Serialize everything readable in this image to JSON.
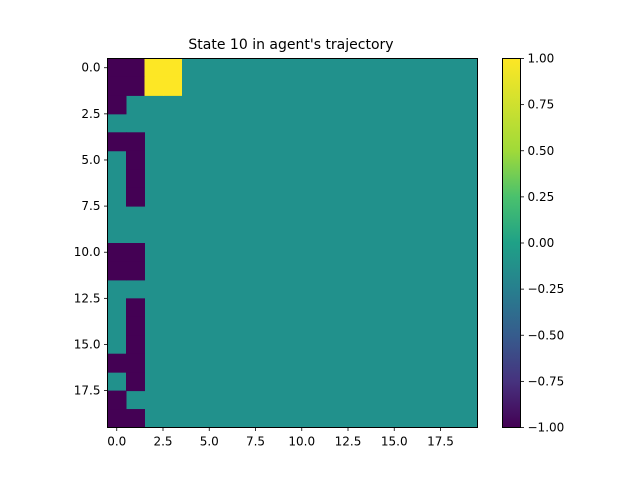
{
  "chart_data": {
    "type": "heatmap",
    "title": "State 10 in agent's trajectory",
    "xlabel": "",
    "ylabel": "",
    "rows": 20,
    "cols": 20,
    "colormap": "viridis",
    "vmin": -1.0,
    "vmax": 1.0,
    "colors": {
      "neg": "#440154",
      "zero": "#21918c",
      "pos": "#fde725"
    },
    "grid": false,
    "xticks": [
      0.0,
      2.5,
      5.0,
      7.5,
      10.0,
      12.5,
      15.0,
      17.5
    ],
    "xtick_labels": [
      "0.0",
      "2.5",
      "5.0",
      "7.5",
      "10.0",
      "12.5",
      "15.0",
      "17.5"
    ],
    "yticks": [
      0.0,
      2.5,
      5.0,
      7.5,
      10.0,
      12.5,
      15.0,
      17.5
    ],
    "ytick_labels": [
      "0.0",
      "2.5",
      "5.0",
      "7.5",
      "10.0",
      "12.5",
      "15.0",
      "17.5"
    ],
    "colorbar": {
      "ticks": [
        1.0,
        0.75,
        0.5,
        0.25,
        0.0,
        -0.25,
        -0.5,
        -0.75,
        -1.0
      ],
      "tick_labels": [
        "1.00",
        "0.75",
        "0.50",
        "0.25",
        "0.00",
        "−0.25",
        "−0.50",
        "−0.75",
        "−1.00"
      ]
    },
    "nonzero_cells": [
      {
        "row": 0,
        "col": 0,
        "value": -1
      },
      {
        "row": 0,
        "col": 1,
        "value": -1
      },
      {
        "row": 0,
        "col": 2,
        "value": 1
      },
      {
        "row": 0,
        "col": 3,
        "value": 1
      },
      {
        "row": 1,
        "col": 0,
        "value": -1
      },
      {
        "row": 1,
        "col": 1,
        "value": -1
      },
      {
        "row": 1,
        "col": 2,
        "value": 1
      },
      {
        "row": 1,
        "col": 3,
        "value": 1
      },
      {
        "row": 2,
        "col": 0,
        "value": -1
      },
      {
        "row": 4,
        "col": 0,
        "value": -1
      },
      {
        "row": 4,
        "col": 1,
        "value": -1
      },
      {
        "row": 5,
        "col": 1,
        "value": -1
      },
      {
        "row": 6,
        "col": 1,
        "value": -1
      },
      {
        "row": 7,
        "col": 1,
        "value": -1
      },
      {
        "row": 10,
        "col": 0,
        "value": -1
      },
      {
        "row": 10,
        "col": 1,
        "value": -1
      },
      {
        "row": 11,
        "col": 0,
        "value": -1
      },
      {
        "row": 11,
        "col": 1,
        "value": -1
      },
      {
        "row": 13,
        "col": 1,
        "value": -1
      },
      {
        "row": 14,
        "col": 1,
        "value": -1
      },
      {
        "row": 15,
        "col": 1,
        "value": -1
      },
      {
        "row": 16,
        "col": 0,
        "value": -1
      },
      {
        "row": 16,
        "col": 1,
        "value": -1
      },
      {
        "row": 17,
        "col": 1,
        "value": -1
      },
      {
        "row": 18,
        "col": 0,
        "value": -1
      },
      {
        "row": 19,
        "col": 0,
        "value": -1
      },
      {
        "row": 19,
        "col": 1,
        "value": -1
      }
    ]
  }
}
